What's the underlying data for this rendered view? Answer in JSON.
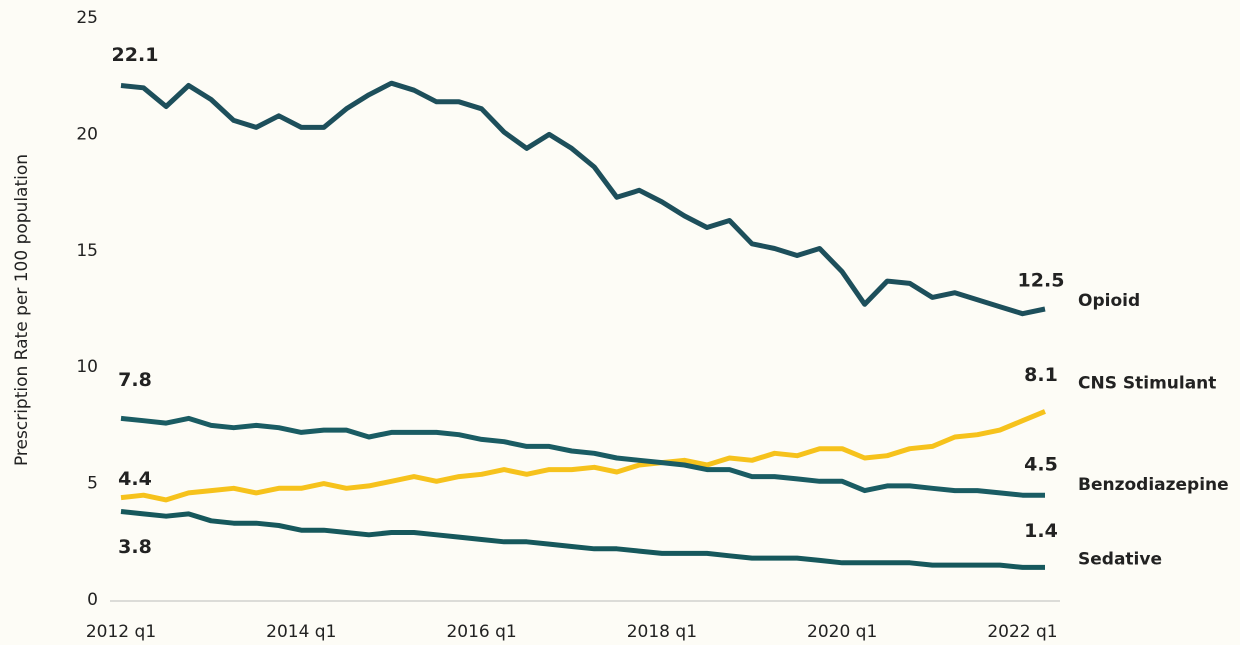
{
  "chart_data": {
    "type": "line",
    "y_label": "Prescription Rate per 100 population",
    "categories": [
      "2012 q1",
      null,
      null,
      null,
      null,
      null,
      null,
      null,
      "2014 q1",
      null,
      null,
      null,
      null,
      null,
      null,
      null,
      "2016 q1",
      null,
      null,
      null,
      null,
      null,
      null,
      null,
      "2018 q1",
      null,
      null,
      null,
      null,
      null,
      null,
      null,
      "2020 q1",
      null,
      null,
      null,
      null,
      null,
      null,
      null,
      "2022 q1",
      null
    ],
    "ylim": [
      0,
      25
    ],
    "yticks": [
      0,
      5,
      10,
      15,
      20,
      25
    ],
    "grid": false,
    "series": [
      {
        "name": "Opioid",
        "color": "#1d4f5b",
        "values": [
          22.1,
          22.0,
          21.2,
          22.1,
          21.5,
          20.6,
          20.3,
          20.8,
          20.3,
          20.3,
          21.1,
          21.7,
          22.2,
          21.9,
          21.4,
          21.4,
          21.1,
          20.1,
          19.4,
          20.0,
          19.4,
          18.6,
          17.3,
          17.6,
          17.1,
          16.5,
          16.0,
          16.3,
          15.3,
          15.1,
          14.8,
          15.1,
          14.1,
          12.7,
          13.7,
          13.6,
          13.0,
          13.2,
          12.9,
          12.6,
          12.3,
          12.5
        ]
      },
      {
        "name": "CNS Stimulant",
        "color": "#f6c21c",
        "values": [
          4.4,
          4.5,
          4.3,
          4.6,
          4.7,
          4.8,
          4.6,
          4.8,
          4.8,
          5.0,
          4.8,
          4.9,
          5.1,
          5.3,
          5.1,
          5.3,
          5.4,
          5.6,
          5.4,
          5.6,
          5.6,
          5.7,
          5.5,
          5.8,
          5.9,
          6.0,
          5.8,
          6.1,
          6.0,
          6.3,
          6.2,
          6.5,
          6.5,
          6.1,
          6.2,
          6.5,
          6.6,
          7.0,
          7.1,
          7.3,
          7.7,
          8.1
        ]
      },
      {
        "name": "Benzodiazepine",
        "color": "#1a5c63",
        "values": [
          7.8,
          7.7,
          7.6,
          7.8,
          7.5,
          7.4,
          7.5,
          7.4,
          7.2,
          7.3,
          7.3,
          7.0,
          7.2,
          7.2,
          7.2,
          7.1,
          6.9,
          6.8,
          6.6,
          6.6,
          6.4,
          6.3,
          6.1,
          6.0,
          5.9,
          5.8,
          5.6,
          5.6,
          5.3,
          5.3,
          5.2,
          5.1,
          5.1,
          4.7,
          4.9,
          4.9,
          4.8,
          4.7,
          4.7,
          4.6,
          4.5,
          4.5
        ]
      },
      {
        "name": "Sedative",
        "color": "#16585c",
        "values": [
          3.8,
          3.7,
          3.6,
          3.7,
          3.4,
          3.3,
          3.3,
          3.2,
          3.0,
          3.0,
          2.9,
          2.8,
          2.9,
          2.9,
          2.8,
          2.7,
          2.6,
          2.5,
          2.5,
          2.4,
          2.3,
          2.2,
          2.2,
          2.1,
          2.0,
          2.0,
          2.0,
          1.9,
          1.8,
          1.8,
          1.8,
          1.7,
          1.6,
          1.6,
          1.6,
          1.6,
          1.5,
          1.5,
          1.5,
          1.5,
          1.4,
          1.4
        ]
      }
    ]
  }
}
